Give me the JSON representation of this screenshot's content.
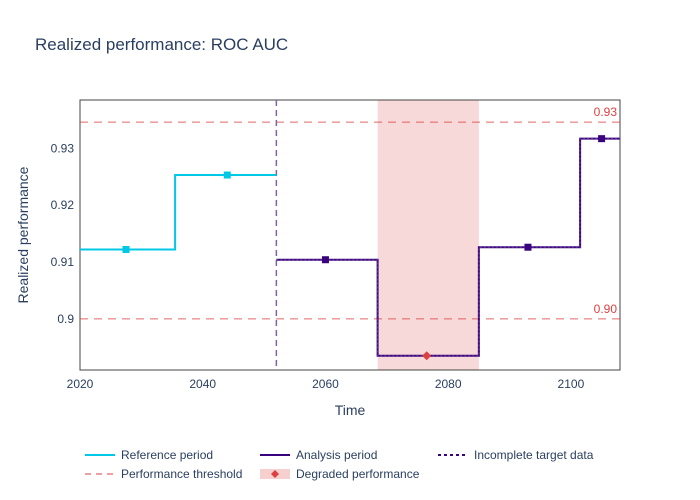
{
  "chart_data": {
    "type": "line",
    "title": "Realized performance: ROC AUC",
    "xlabel": "Time",
    "ylabel": "Realized performance",
    "xlim": [
      2020,
      2108
    ],
    "ylim": [
      0.891,
      0.9385
    ],
    "x_ticks": [
      "2020",
      "2040",
      "2060",
      "2080",
      "2100"
    ],
    "y_ticks": [
      "0.9",
      "0.91",
      "0.92",
      "0.93"
    ],
    "grid": false,
    "legend_position": "bottom",
    "series": [
      {
        "name": "Reference period",
        "line_style": "solid",
        "step_edges": [
          2020,
          2035.5,
          2052
        ],
        "values": [
          0.9122,
          0.9253
        ],
        "markers_x": [
          2027.5,
          2044
        ],
        "markers_y": [
          0.9122,
          0.9253
        ]
      },
      {
        "name": "Analysis period",
        "line_style": "solid",
        "step_edges": [
          2052,
          2068.5,
          2085,
          2101.5,
          2108
        ],
        "values": [
          0.9104,
          0.8935,
          0.9126,
          0.9317
        ],
        "markers_x": [
          2060,
          2076.5,
          2093,
          2105
        ],
        "markers_y": [
          0.9104,
          0.8935,
          0.9126,
          0.9317
        ],
        "degraded": [
          false,
          true,
          false,
          false
        ]
      }
    ],
    "thresholds": [
      {
        "value": 0.9346,
        "label": "0.93"
      },
      {
        "value": 0.9,
        "label": "0.90"
      }
    ],
    "period_divider_x": 2052,
    "degraded_span": [
      2068.5,
      2085
    ],
    "legend": [
      {
        "label": "Reference period",
        "kind": "line-solid",
        "color": "#00c8e5"
      },
      {
        "label": "Analysis period",
        "kind": "line-solid",
        "color": "#3b0280"
      },
      {
        "label": "Incomplete target data",
        "kind": "line-dotted",
        "color": "#3b0280"
      },
      {
        "label": "Performance threshold",
        "kind": "line-dashed",
        "color": "#dd4040"
      },
      {
        "label": "Degraded performance",
        "kind": "band-diamond",
        "color": "#dd4040"
      }
    ],
    "colors": {
      "reference": "#00c8e5",
      "analysis": "#3b0280",
      "threshold": "#dd4040",
      "degraded_band": "#dd4040",
      "divider": "#8064a2"
    }
  }
}
